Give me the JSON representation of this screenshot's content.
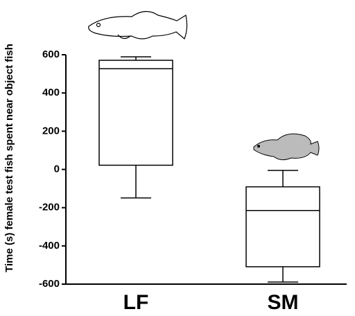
{
  "chart_data": {
    "type": "box",
    "y_label": "Time (s) female test fish spent near object fish",
    "categories": [
      "LF",
      "SM"
    ],
    "stats": [
      {
        "whislo": -149,
        "q1": 22,
        "med": 527,
        "q3": 571,
        "whishi": 589
      },
      {
        "whislo": -589,
        "q1": -509,
        "med": -215,
        "q3": -91,
        "whishi": -5
      }
    ],
    "ylim": [
      -600,
      600
    ],
    "yticks": [
      -600,
      -400,
      -200,
      0,
      200,
      400,
      600
    ],
    "color": "#000000"
  }
}
